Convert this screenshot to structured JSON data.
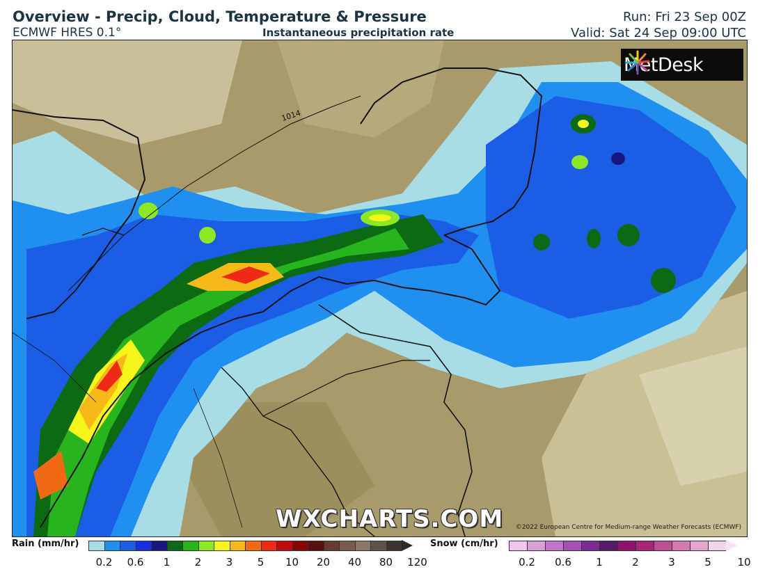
{
  "header": {
    "title": "Overview - Precip, Cloud, Temperature & Pressure",
    "model": "ECMWF HRES 0.1°",
    "subtitle": "Instantaneous precipitation rate",
    "run": "Run: Fri 23 Sep 00Z",
    "valid": "Valid: Sat 24 Sep 09:00 UTC"
  },
  "map": {
    "isobar_label": "1014",
    "logo_text": "MetDesk",
    "watermark": "WXCHARTS.COM",
    "copyright": "©2022 European Centre for Medium-range Weather Forecasts (ECMWF)"
  },
  "legend": {
    "rain": {
      "label": "Rain (mm/hr)",
      "colors": [
        "#a8dde6",
        "#1f8ff0",
        "#1c5de6",
        "#1a2ee0",
        "#17177f",
        "#0b6a12",
        "#27b41c",
        "#8ee81f",
        "#f5f51a",
        "#f7b918",
        "#f26914",
        "#ee2a16",
        "#c10b0b",
        "#8a0505",
        "#5a0f0f",
        "#6a3a32",
        "#7b5a4e",
        "#8e7466",
        "#5f524c",
        "#3b3532"
      ],
      "ticks": [
        "0.2",
        "0.6",
        "1",
        "2",
        "3",
        "5",
        "10",
        "20",
        "40",
        "80",
        "120"
      ]
    },
    "snow": {
      "label": "Snow (cm/hr)",
      "colors": [
        "#f1c6ef",
        "#d79ed8",
        "#c273cc",
        "#a64fb4",
        "#7c2b93",
        "#5a1a6c",
        "#8e1268",
        "#a52679",
        "#bf4e93",
        "#d27ab1",
        "#e3a6cf",
        "#f2d4ea"
      ],
      "ticks": [
        "0.2",
        "0.6",
        "1",
        "2",
        "3",
        "5",
        "10"
      ]
    }
  }
}
